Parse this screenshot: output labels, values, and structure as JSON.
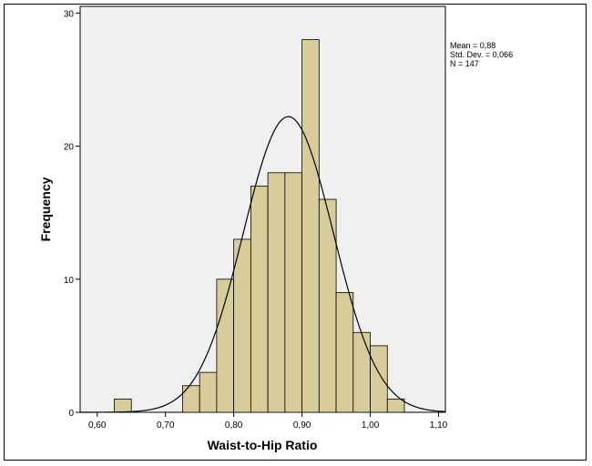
{
  "chart_data": {
    "type": "bar",
    "subtype": "histogram",
    "xlabel": "Waist-to-Hip Ratio",
    "ylabel": "Frequency",
    "xlim": [
      0.575,
      1.11
    ],
    "ylim": [
      0,
      30.5
    ],
    "x_ticks": [
      0.6,
      0.7,
      0.8,
      0.9,
      1.0,
      1.1
    ],
    "x_tick_labels": [
      "0,60",
      "0,70",
      "0,80",
      "0,90",
      "1,00",
      "1,10"
    ],
    "y_ticks": [
      0,
      10,
      20,
      30
    ],
    "y_tick_labels": [
      "0",
      "10",
      "20",
      "30"
    ],
    "bins": [
      {
        "start": 0.625,
        "end": 0.65,
        "count": 1
      },
      {
        "start": 0.725,
        "end": 0.75,
        "count": 2
      },
      {
        "start": 0.75,
        "end": 0.775,
        "count": 3
      },
      {
        "start": 0.775,
        "end": 0.8,
        "count": 10
      },
      {
        "start": 0.8,
        "end": 0.825,
        "count": 13
      },
      {
        "start": 0.825,
        "end": 0.85,
        "count": 17
      },
      {
        "start": 0.85,
        "end": 0.875,
        "count": 18
      },
      {
        "start": 0.875,
        "end": 0.9,
        "count": 18
      },
      {
        "start": 0.9,
        "end": 0.925,
        "count": 28
      },
      {
        "start": 0.925,
        "end": 0.95,
        "count": 16
      },
      {
        "start": 0.95,
        "end": 0.975,
        "count": 9
      },
      {
        "start": 0.975,
        "end": 1.0,
        "count": 6
      },
      {
        "start": 1.0,
        "end": 1.025,
        "count": 5
      },
      {
        "start": 1.025,
        "end": 1.05,
        "count": 1
      }
    ],
    "normal_curve": {
      "mean": 0.88,
      "std": 0.066,
      "n": 147,
      "bin_width": 0.025
    },
    "stats_text": [
      "Mean = 0,88",
      "Std. Dev. = 0,066",
      "N = 147"
    ],
    "colors": {
      "bar_fill": "#d8cc9b",
      "plot_bg": "#f0f0f0",
      "curve": "#000000"
    },
    "grid": false,
    "legend_position": "top-right"
  }
}
